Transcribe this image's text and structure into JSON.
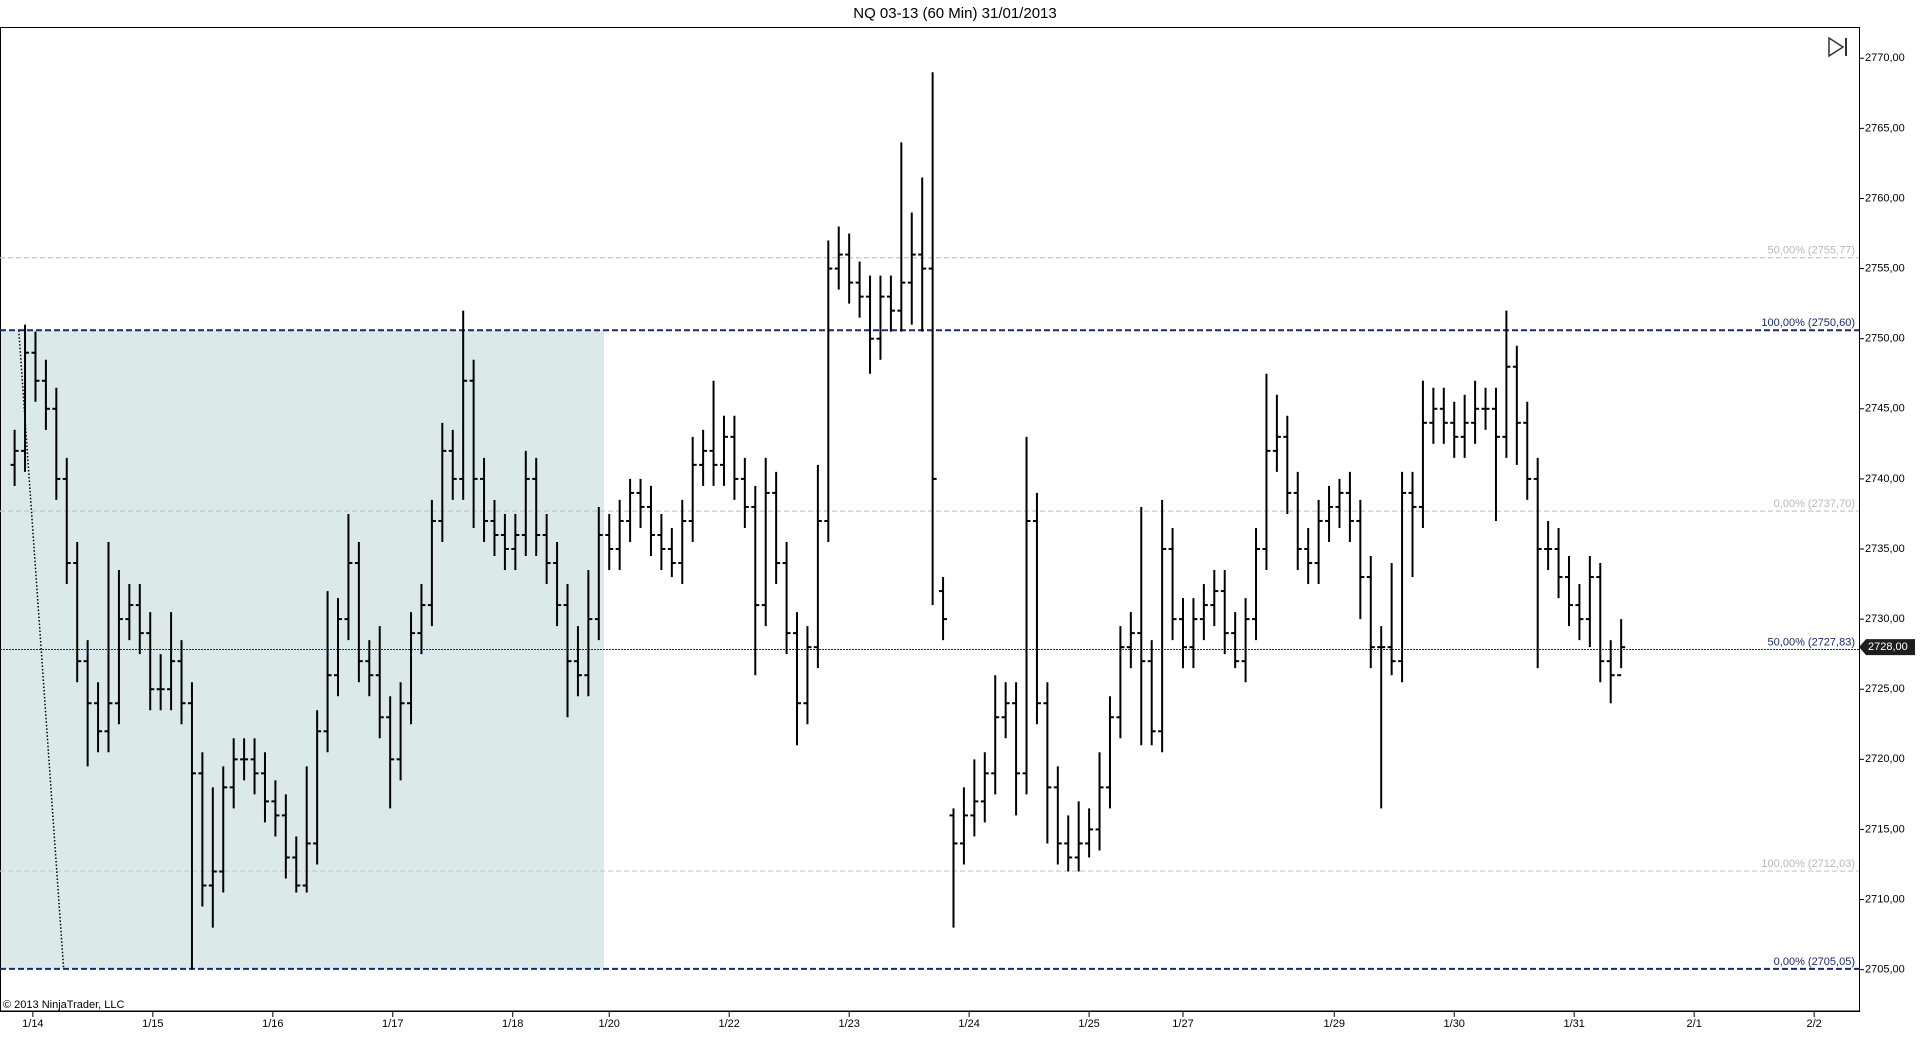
{
  "chart_data": {
    "type": "ohlc",
    "title": "NQ 03-13 (60 Min)  31/01/2013",
    "copyright": "© 2013 NinjaTrader, LLC",
    "color": "#000000",
    "xlim": [
      -1.4,
      176.8
    ],
    "xticks": [
      {
        "value": 1.75,
        "label": "1/14"
      },
      {
        "value": 13.25,
        "label": "1/15"
      },
      {
        "value": 24.75,
        "label": "1/16"
      },
      {
        "value": 36.25,
        "label": "1/17"
      },
      {
        "value": 47.75,
        "label": "1/18"
      },
      {
        "value": 57,
        "label": "1/20"
      },
      {
        "value": 68.5,
        "label": "1/22"
      },
      {
        "value": 80,
        "label": "1/23"
      },
      {
        "value": 91.5,
        "label": "1/24"
      },
      {
        "value": 103,
        "label": "1/25"
      },
      {
        "value": 112,
        "label": "1/27"
      },
      {
        "value": 126.5,
        "label": "1/29"
      },
      {
        "value": 138,
        "label": "1/30"
      },
      {
        "value": 149.5,
        "label": "1/31"
      },
      {
        "value": 161,
        "label": "2/1"
      },
      {
        "value": 172.5,
        "label": "2/2"
      }
    ],
    "ylim": [
      2702.05,
      2772.23
    ],
    "yticks": [
      {
        "value": 2705,
        "label": "2705,00"
      },
      {
        "value": 2710,
        "label": "2710,00"
      },
      {
        "value": 2715,
        "label": "2715,00"
      },
      {
        "value": 2720,
        "label": "2720,00"
      },
      {
        "value": 2725,
        "label": "2725,00"
      },
      {
        "value": 2730,
        "label": "2730,00"
      },
      {
        "value": 2735,
        "label": "2735,00"
      },
      {
        "value": 2740,
        "label": "2740,00"
      },
      {
        "value": 2745,
        "label": "2745,00"
      },
      {
        "value": 2750,
        "label": "2750,00"
      },
      {
        "value": 2755,
        "label": "2755,00"
      },
      {
        "value": 2760,
        "label": "2760,00"
      },
      {
        "value": 2765,
        "label": "2765,00"
      },
      {
        "value": 2770,
        "label": "2770,00"
      }
    ],
    "open": [
      2741,
      2742,
      2749,
      2747,
      2745,
      2740,
      2734,
      2727,
      2724,
      2722,
      2724,
      2730,
      2731,
      2729,
      2725,
      2725,
      2727,
      2724,
      2719,
      2711,
      2712,
      2718,
      2720,
      2720,
      2719,
      2717,
      2716,
      2713,
      2711,
      2714,
      2722,
      2726,
      2730,
      2734,
      2727,
      2726,
      2723,
      2720,
      2724,
      2729,
      2731,
      2737,
      2742,
      2740,
      2747,
      2740,
      2737,
      2736,
      2735,
      2736,
      2740,
      2736,
      2734,
      2731,
      2727,
      2726,
      2730,
      2736,
      2735,
      2737,
      2739,
      2738,
      2736,
      2735,
      2734,
      2737,
      2741,
      2742,
      2741,
      2743,
      2740,
      2738,
      2731,
      2739,
      2734,
      2729,
      2724,
      2728,
      2737,
      2755,
      2756,
      2754,
      2753,
      2750,
      2753,
      2752,
      2754,
      2756,
      2755,
      2732,
      2716,
      2714,
      2716,
      2717,
      2719,
      2723,
      2724,
      2719,
      2737,
      2724,
      2718,
      2714,
      2713,
      2714,
      2715,
      2718,
      2723,
      2728,
      2729,
      2727,
      2722,
      2735,
      2730,
      2728,
      2730,
      2731,
      2732,
      2729,
      2727,
      2730,
      2735,
      2742,
      2743,
      2739,
      2735,
      2734,
      2737,
      2738,
      2739,
      2737,
      2733,
      2728,
      2728,
      2727,
      2739,
      2738,
      2744,
      2745,
      2744,
      2743,
      2744,
      2745,
      2745,
      2743,
      2748,
      2744,
      2740,
      2735,
      2735,
      2733,
      2731,
      2730,
      2733,
      2727,
      2726
    ],
    "high": [
      2743.5,
      2751,
      2750.5,
      2748.5,
      2746.5,
      2741.5,
      2735.5,
      2728.5,
      2725.5,
      2735.5,
      2733.5,
      2732.5,
      2732.5,
      2730.5,
      2727.5,
      2730.5,
      2728.5,
      2725.5,
      2720.5,
      2718,
      2719.5,
      2721.5,
      2721.5,
      2721.5,
      2720.5,
      2718.5,
      2717.5,
      2714.5,
      2719.5,
      2723.5,
      2732,
      2731.5,
      2737.5,
      2735.5,
      2728.5,
      2729.5,
      2724.5,
      2725.5,
      2730.5,
      2732.5,
      2738.5,
      2744,
      2743.5,
      2752,
      2748.5,
      2741.5,
      2738.5,
      2737.5,
      2737.5,
      2742,
      2741.5,
      2737.5,
      2735.5,
      2732.5,
      2729.5,
      2733.5,
      2738,
      2737.5,
      2738.5,
      2740,
      2740,
      2739.5,
      2737.5,
      2736.5,
      2738.5,
      2743,
      2743.5,
      2747,
      2744.5,
      2744.5,
      2741.5,
      2739.5,
      2741.5,
      2740.5,
      2735.5,
      2730.5,
      2729.5,
      2741,
      2757,
      2758,
      2757.5,
      2755.5,
      2754.5,
      2754.5,
      2754.5,
      2764,
      2759,
      2761.5,
      2769,
      2733,
      2716.5,
      2718,
      2720,
      2720.5,
      2726,
      2725.5,
      2725.5,
      2743,
      2739,
      2725.5,
      2719.5,
      2716,
      2717,
      2716.5,
      2720.5,
      2724.5,
      2729.5,
      2730.5,
      2738,
      2728.5,
      2738.5,
      2736.5,
      2731.5,
      2731.5,
      2732.5,
      2733.5,
      2733.5,
      2730.5,
      2731.5,
      2736.5,
      2747.5,
      2746,
      2744.5,
      2740.5,
      2736.5,
      2738.5,
      2739.5,
      2740,
      2740.5,
      2738.5,
      2734.5,
      2729.5,
      2734,
      2740.5,
      2740.5,
      2747,
      2746.5,
      2746.5,
      2745.5,
      2746,
      2747,
      2746.5,
      2746.5,
      2752,
      2749.5,
      2745.5,
      2741.5,
      2737,
      2736.5,
      2734.5,
      2732.5,
      2734.5,
      2734,
      2728.5,
      2730
    ],
    "low": [
      2739.5,
      2740.5,
      2745.5,
      2743.5,
      2738.5,
      2732.5,
      2725.5,
      2719.5,
      2720.5,
      2720.5,
      2722.5,
      2728.5,
      2727.5,
      2723.5,
      2723.5,
      2723.5,
      2722.5,
      2705,
      2709.5,
      2708,
      2710.5,
      2716.5,
      2718.5,
      2717.5,
      2715.5,
      2714.5,
      2711.5,
      2710.5,
      2710.5,
      2712.5,
      2720.5,
      2724.5,
      2728.5,
      2725.5,
      2724.5,
      2721.5,
      2716.5,
      2718.5,
      2722.5,
      2727.5,
      2729.5,
      2735.5,
      2738.5,
      2738.5,
      2736.5,
      2735.5,
      2734.5,
      2733.5,
      2733.5,
      2734.5,
      2734.5,
      2732.5,
      2729.5,
      2723,
      2724.5,
      2724.5,
      2728.5,
      2733.5,
      2733.5,
      2735.5,
      2736.5,
      2734.5,
      2733.5,
      2733,
      2732.5,
      2735.5,
      2739.5,
      2739.5,
      2739.5,
      2738.5,
      2736.5,
      2726,
      2729.5,
      2732.5,
      2727.5,
      2721,
      2722.5,
      2726.5,
      2735.5,
      2753.5,
      2752.5,
      2751.5,
      2747.5,
      2748.5,
      2750.5,
      2750.5,
      2751,
      2750.5,
      2731,
      2728.5,
      2708,
      2712.5,
      2714.5,
      2715.5,
      2717.5,
      2721.5,
      2716,
      2717.5,
      2722.5,
      2714,
      2712.5,
      2712,
      2712,
      2713,
      2713.5,
      2716.5,
      2721.5,
      2726.5,
      2721,
      2721,
      2720.5,
      2728.5,
      2726.5,
      2726.5,
      2728.5,
      2729.5,
      2727.5,
      2726.5,
      2725.5,
      2728.5,
      2733.5,
      2740.5,
      2737.5,
      2733.5,
      2732.5,
      2732.5,
      2735.5,
      2736.5,
      2735.5,
      2730,
      2726.5,
      2716.5,
      2726,
      2725.5,
      2733,
      2736.5,
      2742.5,
      2742.5,
      2741.5,
      2741.5,
      2742.5,
      2743.5,
      2737,
      2741.5,
      2741,
      2738.5,
      2726.5,
      2733.5,
      2731.5,
      2729.5,
      2728.5,
      2728,
      2725.5,
      2724,
      2726.5
    ],
    "close": [
      2742,
      2749,
      2747,
      2745,
      2740,
      2734,
      2727,
      2724,
      2722,
      2724,
      2730,
      2731,
      2729,
      2725,
      2725,
      2727,
      2724,
      2719,
      2711,
      2712,
      2718,
      2720,
      2720,
      2719,
      2717,
      2716,
      2713,
      2711,
      2714,
      2722,
      2726,
      2730,
      2734,
      2727,
      2726,
      2723,
      2720,
      2724,
      2729,
      2731,
      2737,
      2742,
      2740,
      2747,
      2740,
      2737,
      2736,
      2735,
      2736,
      2740,
      2736,
      2734,
      2731,
      2727,
      2726,
      2730,
      2736,
      2735,
      2737,
      2739,
      2738,
      2736,
      2735,
      2734,
      2737,
      2741,
      2742,
      2741,
      2743,
      2740,
      2738,
      2731,
      2739,
      2734,
      2729,
      2724,
      2728,
      2737,
      2755,
      2756,
      2754,
      2753,
      2750,
      2753,
      2752,
      2754,
      2756,
      2755,
      2740,
      2730,
      2714,
      2716,
      2717,
      2719,
      2723,
      2724,
      2719,
      2737,
      2724,
      2718,
      2714,
      2713,
      2714,
      2715,
      2718,
      2723,
      2728,
      2729,
      2727,
      2722,
      2735,
      2730,
      2728,
      2730,
      2731,
      2732,
      2729,
      2727,
      2730,
      2735,
      2742,
      2743,
      2739,
      2735,
      2734,
      2737,
      2738,
      2739,
      2737,
      2733,
      2728,
      2728,
      2727,
      2739,
      2738,
      2744,
      2745,
      2744,
      2743,
      2744,
      2745,
      2745,
      2743,
      2748,
      2744,
      2740,
      2735,
      2735,
      2733,
      2731,
      2730,
      2733,
      2727,
      2726,
      2728
    ],
    "levels": [
      {
        "value": 2755.77,
        "label": "50,00% (2755,77)",
        "style": "light"
      },
      {
        "value": 2750.6,
        "label": "100,00% (2750,60)",
        "style": "main"
      },
      {
        "value": 2737.7,
        "label": "0,00% (2737,70)",
        "style": "light"
      },
      {
        "value": 2727.83,
        "label": "50,00% (2727,83)",
        "style": "mid"
      },
      {
        "value": 2712.03,
        "label": "100,00% (2712,03)",
        "style": "light"
      },
      {
        "value": 2705.05,
        "label": "0,00% (2705,05)",
        "style": "main"
      }
    ],
    "fib_zone": {
      "x": [
        -1.4,
        56.5
      ],
      "y": [
        2705.05,
        2750.6
      ],
      "color": "#dbeae8"
    },
    "trend_line": {
      "x": [
        0.4,
        4.7
      ],
      "y": [
        2750.6,
        2705.05
      ]
    },
    "last_price": {
      "value": 2728,
      "label": "2728,00"
    }
  }
}
